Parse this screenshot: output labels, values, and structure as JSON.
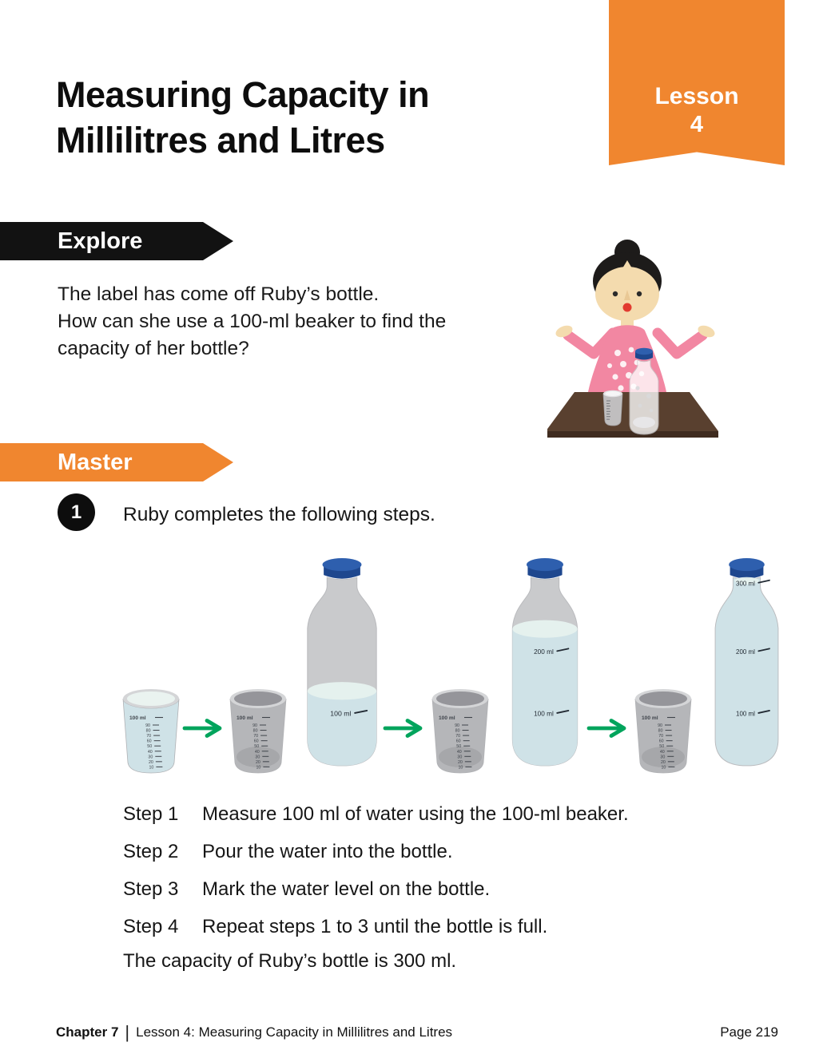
{
  "header": {
    "title_line1": "Measuring Capacity in",
    "title_line2": "Millilitres and Litres",
    "lesson_label": "Lesson",
    "lesson_number": "4"
  },
  "explore": {
    "banner_label": "Explore",
    "text": "The label has come off Ruby’s bottle.\nHow can she use a 100-ml beaker to find the\ncapacity of her bottle?"
  },
  "master": {
    "banner_label": "Master",
    "item_number": "1",
    "prompt": "Ruby completes the following steps.",
    "conclusion": "The capacity of Ruby’s bottle is 300 ml."
  },
  "diagram": {
    "beaker_scale_top": "100 ml",
    "beaker_scale": [
      "90",
      "80",
      "70",
      "60",
      "50",
      "40",
      "30",
      "20",
      "10"
    ],
    "beakers": [
      {
        "state": "full"
      },
      {
        "state": "empty"
      },
      {
        "state": "empty"
      },
      {
        "state": "empty"
      }
    ],
    "bottles": [
      {
        "water_level_ml": 100,
        "labels": [
          {
            "text": "100 ml",
            "level": 100
          }
        ]
      },
      {
        "water_level_ml": 200,
        "labels": [
          {
            "text": "200 ml",
            "level": 200
          },
          {
            "text": "100 ml",
            "level": 100
          }
        ]
      },
      {
        "water_level_ml": 300,
        "labels": [
          {
            "text": "300 ml",
            "level": 300
          },
          {
            "text": "200 ml",
            "level": 200
          },
          {
            "text": "100 ml",
            "level": 100
          }
        ]
      }
    ],
    "colors": {
      "arrow_green": "#00a45c",
      "water": "#cfe2e7",
      "water_surface": "#e5f1ee",
      "bottle_empty": "#c9cacc",
      "cap_blue": "#2e5fae",
      "cap_blue_dark": "#1e478e",
      "beaker_gray": "#b5b6b9",
      "beaker_inner": "#95959a",
      "scale_ink": "#3f444b",
      "label_ink": "#232b34"
    }
  },
  "steps": {
    "items": [
      {
        "label": "Step 1",
        "text": "Measure 100 ml of water using the 100-ml beaker."
      },
      {
        "label": "Step 2",
        "text": "Pour the water into the bottle."
      },
      {
        "label": "Step 3",
        "text": "Mark the water level on the bottle."
      },
      {
        "label": "Step 4",
        "text": "Repeat steps 1 to 3 until the bottle is full."
      }
    ]
  },
  "footer": {
    "chapter": "Chapter 7",
    "divider": "|",
    "lesson": "Lesson 4: Measuring Capacity in Millilitres and Litres",
    "page": "Page 219"
  },
  "colors": {
    "accent_orange": "#f0862f",
    "banner_black": "#121212"
  }
}
